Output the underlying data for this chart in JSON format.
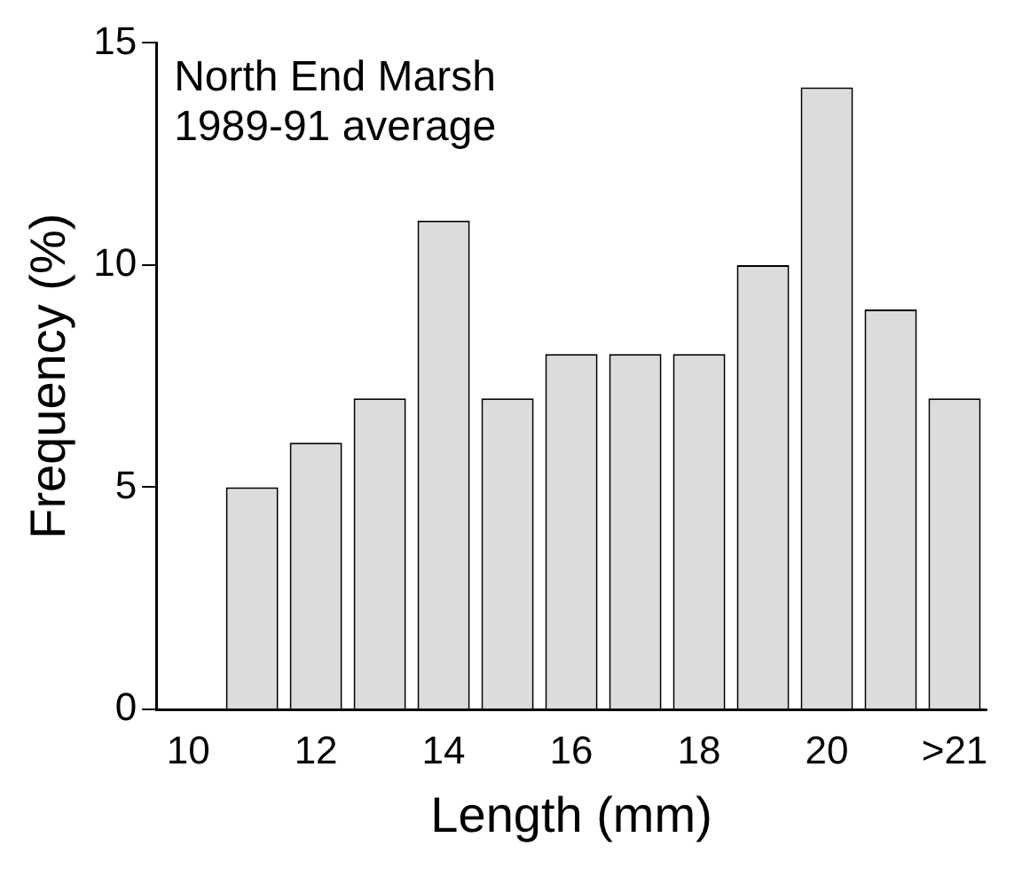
{
  "chart_data": {
    "type": "bar",
    "xlabel": "Length (mm)",
    "ylabel": "Frequency (%)",
    "annotations": [
      "North End Marsh",
      "1989-91 average"
    ],
    "categories": [
      "10",
      null,
      "12",
      null,
      "14",
      null,
      "16",
      null,
      "18",
      null,
      "20",
      null,
      ">21"
    ],
    "values": [
      null,
      5,
      6,
      7,
      11,
      7,
      8,
      8,
      8,
      10,
      14,
      9,
      7
    ],
    "color": "#dcdcdc",
    "ylim": [
      0,
      15
    ],
    "yticks": [
      0,
      5,
      10,
      15
    ],
    "grid": false,
    "legend": false
  }
}
